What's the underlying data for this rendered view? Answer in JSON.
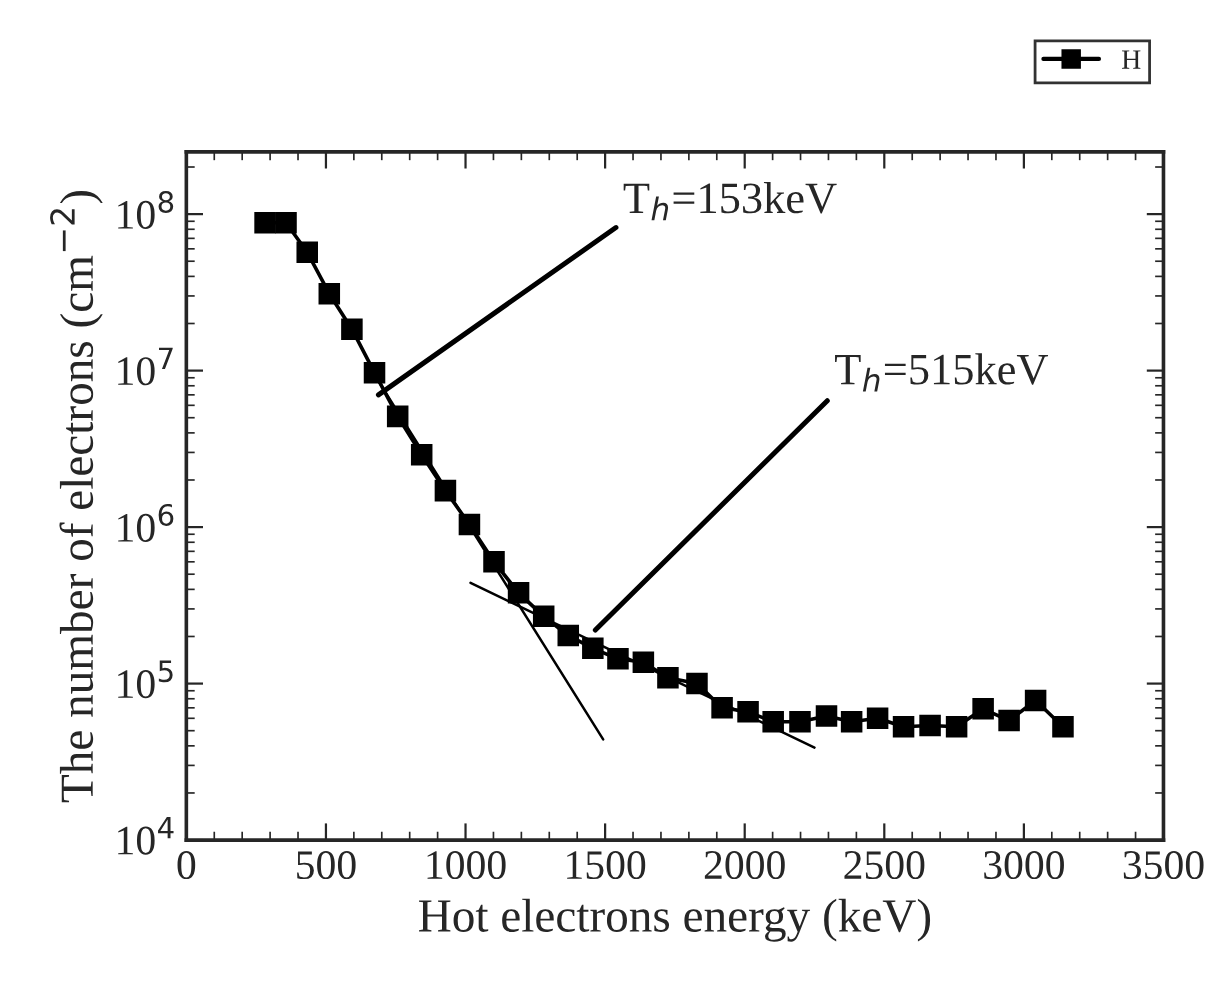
{
  "chart_data": {
    "type": "line",
    "xlabel": "Hot electrons energy (keV)",
    "ylabel": "The number of electrons (cm$^{−2}$)",
    "log": "y",
    "xlim": [
      0,
      3500
    ],
    "xticks": [
      0,
      500,
      1000,
      1500,
      2000,
      2500,
      3000,
      3500
    ],
    "ylim": [
      10000,
      250000000
    ],
    "yticks": [
      {
        "value": 10000,
        "label": "10$^{4}$"
      },
      {
        "value": 100000,
        "label": "10$^{5}$"
      },
      {
        "value": 1000000,
        "label": "10$^{6}$"
      },
      {
        "value": 10000000,
        "label": "10$^{7}$"
      },
      {
        "value": 100000000,
        "label": "10$^{8}$"
      }
    ],
    "grid": false,
    "legend": "top right",
    "series": [
      {
        "name": "H",
        "color": "#000000",
        "marker": "square",
        "line_style": "solid",
        "x": [
          282,
          357,
          433,
          512,
          593,
          674,
          757,
          843,
          928,
          1014,
          1102,
          1190,
          1280,
          1368,
          1456,
          1546,
          1637,
          1725,
          1829,
          1919,
          2012,
          2102,
          2198,
          2293,
          2383,
          2476,
          2569,
          2664,
          2759,
          2854,
          2947,
          3042,
          3140
        ],
        "values": [
          88000000,
          88000000,
          57000000,
          31000000,
          18400000,
          9700000,
          5100000,
          2900000,
          1710000,
          1040000,
          600000,
          380000,
          269000,
          203000,
          168000,
          144000,
          137000,
          109000,
          100000,
          70000,
          66000,
          57000,
          57000,
          62000,
          57000,
          60000,
          53000,
          54000,
          53000,
          69000,
          58000,
          78000,
          53000
        ]
      },
      {
        "color": "#000000",
        "marker": "none",
        "line_style": "solid",
        "x": [
          650,
          1493
        ],
        "values": [
          11000000,
          44000
        ]
      },
      {
        "color": "#000000",
        "marker": "none",
        "line_style": "solid",
        "x": [
          1018,
          2250
        ],
        "values": [
          440000,
          39000
        ]
      }
    ],
    "annotations": [
      {
        "text": "T$_{h}$=153keV",
        "x": 688,
        "y": 7000000
      },
      {
        "text": "T$_{h}$=515keV",
        "x": 1465,
        "y": 220000
      }
    ]
  }
}
